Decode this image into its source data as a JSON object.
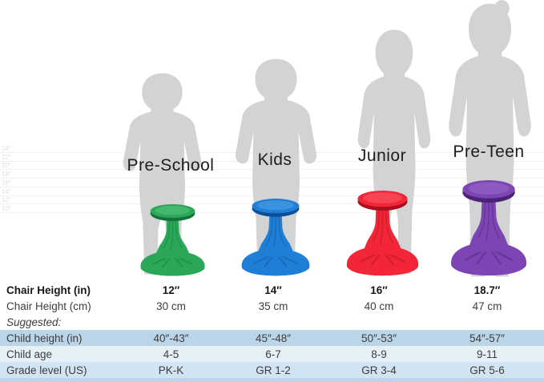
{
  "products": [
    {
      "name": "Pre-School",
      "colors": {
        "main": "#2aa857",
        "dark": "#15713a",
        "light": "#7fd9a2"
      }
    },
    {
      "name": "Kids",
      "colors": {
        "main": "#1f7fd6",
        "dark": "#0d4f96",
        "light": "#7fc0f2"
      }
    },
    {
      "name": "Junior",
      "colors": {
        "main": "#f32638",
        "dark": "#a8101f",
        "light": "#ff8b96"
      }
    },
    {
      "name": "Pre-Teen",
      "colors": {
        "main": "#7c45b3",
        "dark": "#4c2277",
        "light": "#b78ae0"
      }
    }
  ],
  "ruler": {
    "tick_labels": [
      "24″",
      "22″",
      "20″",
      "18″",
      "16″",
      "14″",
      "12″",
      "10″"
    ]
  },
  "table": {
    "rows": [
      {
        "label": "Chair Height (in)",
        "values": [
          "12″",
          "14″",
          "16″",
          "18.7″"
        ],
        "bold": true
      },
      {
        "label": "Chair Height (cm)",
        "values": [
          "30 cm",
          "35 cm",
          "40 cm",
          "47 cm"
        ]
      },
      {
        "label": "Suggested:",
        "values": [
          "",
          "",
          "",
          ""
        ],
        "italic": true
      },
      {
        "label": "Child height (in)",
        "values": [
          "40″-43″",
          "45″-48″",
          "50″-53″",
          "54″-57″"
        ],
        "band": 1
      },
      {
        "label": "Child age",
        "values": [
          "4-5",
          "6-7",
          "8-9",
          "9-11"
        ],
        "band": 2
      },
      {
        "label": "Grade level (US)",
        "values": [
          "PK-K",
          "GR 1-2",
          "GR 3-4",
          "GR 5-6"
        ],
        "band": 3
      }
    ]
  },
  "colors": {
    "silhouette": "#d2d3d5",
    "gridline": "#edf0f4",
    "tick_text": "#dbe2ea",
    "bands": [
      "#bad4e8",
      "#e6f0f7",
      "#d2e4f1"
    ],
    "footer_strip": "#bad4e8",
    "table_text": "#3d3d3d"
  }
}
